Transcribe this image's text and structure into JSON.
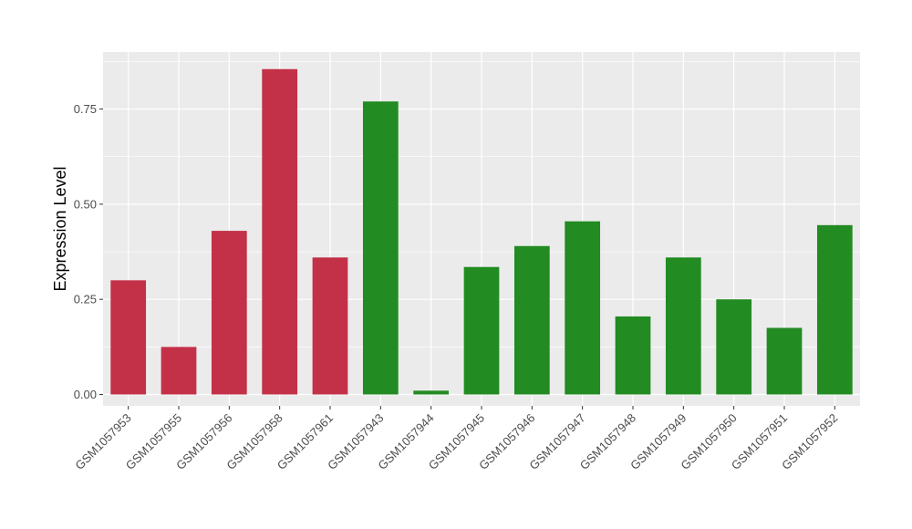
{
  "chart_data": {
    "type": "bar",
    "title": "",
    "xlabel": "",
    "ylabel": "Expression Level",
    "ylim": [
      -0.03,
      0.9
    ],
    "yticks": [
      0.0,
      0.25,
      0.5,
      0.75
    ],
    "ytick_labels": [
      "0.00",
      "0.25",
      "0.50",
      "0.75"
    ],
    "grid": true,
    "legend": "none",
    "panel_background": "#ebebeb",
    "categories": [
      "GSM1057953",
      "GSM1057955",
      "GSM1057956",
      "GSM1057958",
      "GSM1057961",
      "GSM1057943",
      "GSM1057944",
      "GSM1057945",
      "GSM1057946",
      "GSM1057947",
      "GSM1057948",
      "GSM1057949",
      "GSM1057950",
      "GSM1057951",
      "GSM1057952"
    ],
    "values": [
      0.3,
      0.125,
      0.43,
      0.855,
      0.36,
      0.77,
      0.01,
      0.335,
      0.39,
      0.455,
      0.205,
      0.36,
      0.25,
      0.175,
      0.445
    ],
    "bar_colors": [
      "#c33148",
      "#c33148",
      "#c33148",
      "#c33148",
      "#c33148",
      "#228b22",
      "#228b22",
      "#228b22",
      "#228b22",
      "#228b22",
      "#228b22",
      "#228b22",
      "#228b22",
      "#228b22",
      "#228b22"
    ]
  }
}
